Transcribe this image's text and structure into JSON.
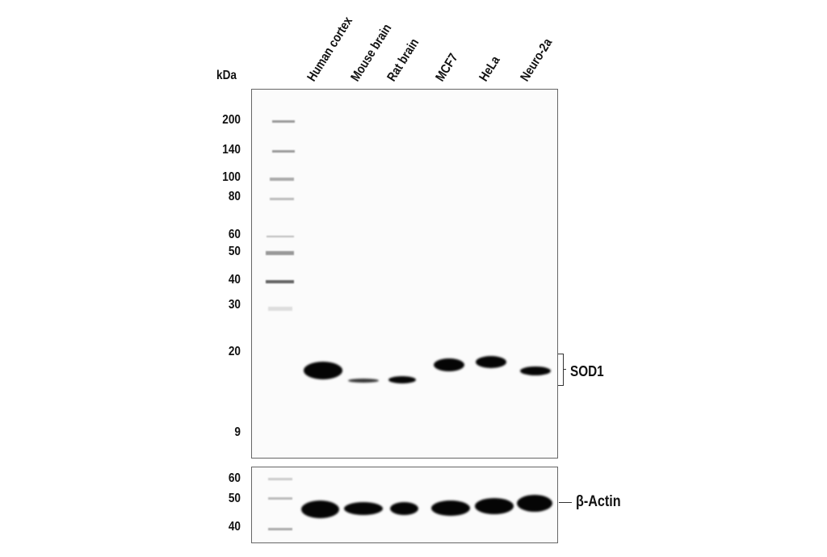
{
  "unit_label": "kDa",
  "lanes": [
    "Human cortex",
    "Mouse brain",
    "Rat brain",
    "MCF7",
    "HeLa",
    "Neuro-2a"
  ],
  "main_panel": {
    "mw_markers": [
      "200",
      "140",
      "100",
      "80",
      "60",
      "50",
      "40",
      "30",
      "20",
      "9"
    ],
    "target": "SOD1"
  },
  "loading_panel": {
    "mw_markers": [
      "60",
      "50",
      "40"
    ],
    "target": "β-Actin"
  }
}
